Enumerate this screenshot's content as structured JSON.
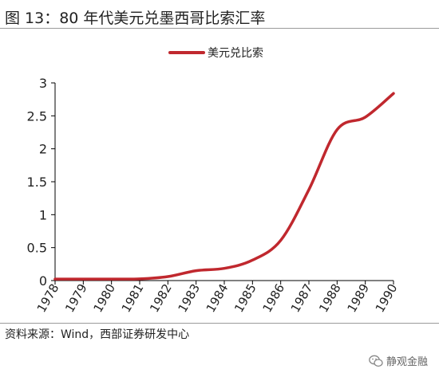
{
  "header": {
    "title": "图 13：80 年代美元兑墨西哥比索汇率"
  },
  "footer": {
    "source": "资料来源：Wind，西部证券研发中心",
    "brand": "静观金融"
  },
  "colors": {
    "series": "#c0282e",
    "axis": "#000000",
    "rule": "#9a9a9a"
  },
  "chart_data": {
    "type": "line",
    "title": "",
    "xlabel": "",
    "ylabel": "",
    "x_ticks": [
      "1978",
      "1979",
      "1980",
      "1981",
      "1982",
      "1983",
      "1984",
      "1985",
      "1986",
      "1987",
      "1988",
      "1989",
      "1990"
    ],
    "y_ticks": [
      "0",
      "0.5",
      "1",
      "1.5",
      "2",
      "2.5",
      "3"
    ],
    "ylim": [
      0,
      3
    ],
    "xlim": [
      1978,
      1990
    ],
    "grid": false,
    "legend_position": "top-center",
    "series": [
      {
        "name": "美元兑比索",
        "color": "#c0282e",
        "x": [
          1978,
          1979,
          1980,
          1981,
          1982,
          1983,
          1984,
          1985,
          1986,
          1987,
          1988,
          1989,
          1990
        ],
        "y": [
          0.023,
          0.023,
          0.023,
          0.025,
          0.06,
          0.15,
          0.185,
          0.31,
          0.61,
          1.38,
          2.29,
          2.48,
          2.84
        ]
      }
    ]
  }
}
